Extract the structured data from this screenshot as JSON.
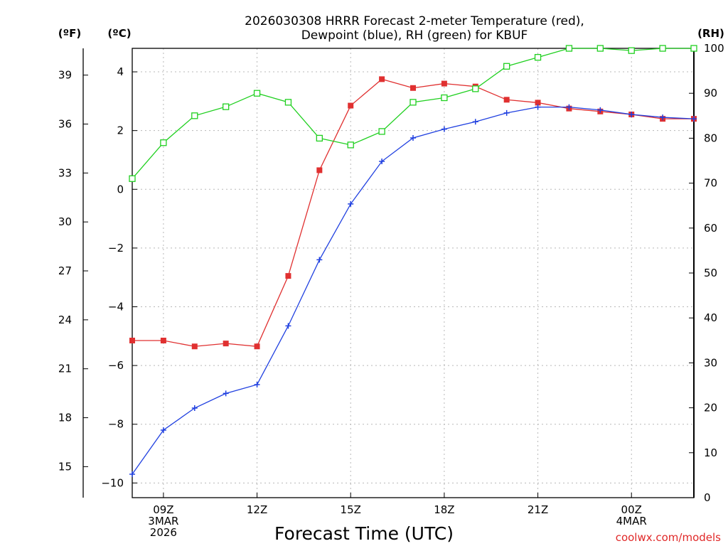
{
  "chart_data": {
    "type": "line",
    "title": "2026030308 HRRR Forecast 2-meter Temperature (red),",
    "subtitle": "Dewpoint (blue), RH (green) for KBUF",
    "xlabel": "Forecast Time (UTC)",
    "credit": "coolwx.com/models",
    "units": {
      "fahrenheit": "(ºF)",
      "celsius": "(ºC)",
      "rh": "(RH)"
    },
    "hours": [
      8,
      9,
      10,
      11,
      12,
      13,
      14,
      15,
      16,
      17,
      18,
      19,
      20,
      21,
      22,
      23,
      24,
      25,
      26
    ],
    "xlim": [
      8,
      26
    ],
    "x_ticks": [
      {
        "hour": 9,
        "lines": [
          "09Z",
          "3MAR",
          "2026"
        ]
      },
      {
        "hour": 12,
        "lines": [
          "12Z"
        ]
      },
      {
        "hour": 15,
        "lines": [
          "15Z"
        ]
      },
      {
        "hour": 18,
        "lines": [
          "18Z"
        ]
      },
      {
        "hour": 21,
        "lines": [
          "21Z"
        ]
      },
      {
        "hour": 24,
        "lines": [
          "00Z",
          "4MAR"
        ]
      }
    ],
    "celsius_axis": {
      "range": [
        -10.5,
        4.8
      ],
      "ticks": [
        4,
        2,
        0,
        -2,
        -4,
        -6,
        -8,
        -10
      ]
    },
    "fahrenheit_axis": {
      "ticks": [
        39,
        36,
        33,
        30,
        27,
        24,
        21,
        18,
        15
      ]
    },
    "rh_axis": {
      "range": [
        0,
        100
      ],
      "ticks": [
        100,
        90,
        80,
        70,
        60,
        50,
        40,
        30,
        20,
        10,
        0
      ]
    },
    "series": [
      {
        "name": "Temperature",
        "axis": "celsius",
        "color": "#e03030",
        "marker": "filled-square",
        "values": [
          -5.15,
          -5.15,
          -5.35,
          -5.25,
          -5.35,
          -2.95,
          0.65,
          2.85,
          3.75,
          3.45,
          3.6,
          3.5,
          3.05,
          2.95,
          2.75,
          2.65,
          2.55,
          2.4,
          2.4
        ]
      },
      {
        "name": "Dewpoint",
        "axis": "celsius",
        "color": "#2040e0",
        "marker": "plus",
        "values": [
          -9.7,
          -8.2,
          -7.45,
          -6.95,
          -6.65,
          -4.65,
          -2.4,
          -0.5,
          0.95,
          1.75,
          2.05,
          2.3,
          2.6,
          2.8,
          2.8,
          2.7,
          2.55,
          2.45,
          2.4
        ]
      },
      {
        "name": "RH",
        "axis": "rh",
        "color": "#20d020",
        "marker": "open-square",
        "values": [
          71,
          79,
          85,
          87,
          90,
          88,
          80,
          78.5,
          81.5,
          88,
          89,
          91,
          96,
          98,
          100,
          100,
          99.5,
          100,
          100
        ]
      }
    ]
  }
}
